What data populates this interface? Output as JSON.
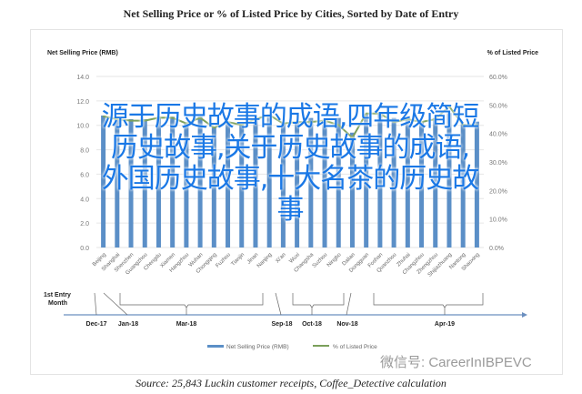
{
  "chart_data": {
    "type": "bar",
    "title": "Net Selling Price or % of Listed Price by Cities, Sorted by Date of Entry",
    "ylabel": "Net Selling Price (RMB)",
    "y2label": "% of Listed Price",
    "ylim": [
      0,
      14
    ],
    "y2lim": [
      0,
      60
    ],
    "yticks": [
      "0.0",
      "2.0",
      "4.0",
      "6.0",
      "8.0",
      "10.0",
      "12.0",
      "14.0"
    ],
    "y2ticks": [
      "0.0%",
      "10.0%",
      "20.0%",
      "30.0%",
      "40.0%",
      "50.0%",
      "60.0%"
    ],
    "grid": true,
    "legend_position": "bottom",
    "categories": [
      "Beijing",
      "Shanghai",
      "Shenzhen",
      "Guangzhou",
      "Chengdu",
      "Xiamen",
      "Hangzhou",
      "Wuhan",
      "Chongqing",
      "Fuzhou",
      "Tianjin",
      "Jinan",
      "Nanjing",
      "Xi'an",
      "Wuxi",
      "Changsha",
      "Suzhou",
      "Ningbo",
      "Dalian",
      "Dongguan",
      "Foshan",
      "Quanzhou",
      "Zhuhai",
      "Changzhou",
      "Zhengzhou",
      "Shijiazhuang",
      "Nantong",
      "Shaoxing"
    ],
    "series": [
      {
        "name": "Net Selling Price (RMB)",
        "type": "bar",
        "color": "#5b8fc7",
        "values": [
          10.8,
          10.6,
          10.5,
          10.5,
          10.7,
          10.7,
          10.2,
          10.7,
          9.9,
          10.3,
          10.1,
          10.6,
          10.9,
          10.2,
          10.3,
          10.6,
          10.3,
          10.6,
          9.4,
          10.9,
          11.0,
          10.6,
          10.6,
          10.3,
          10.6,
          11.0,
          10.1,
          10.3
        ]
      },
      {
        "name": "% of Listed Price",
        "type": "line",
        "color": "#7ba05b",
        "values": [
          46,
          45,
          44.5,
          44.5,
          45.5,
          45.5,
          43.5,
          45.5,
          42,
          44,
          43,
          45,
          46.5,
          43.5,
          44,
          44,
          44.5,
          43,
          38.5,
          47,
          47,
          44,
          45,
          44,
          45,
          49.5,
          43,
          43
        ]
      }
    ],
    "timeline": {
      "label": "1st Entry Month",
      "entries": [
        "Dec-17",
        "Jan-18",
        "Mar-18",
        "Sep-18",
        "Oct-18",
        "Nov-18",
        "Apr-19"
      ]
    }
  },
  "source": "Source: 25,843 Luckin customer receipts, Coffee_Detective calculation",
  "watermark": "微信号: CareerInIBPEVC",
  "overlay_text": "源于历史故事的成语,四年级简短历史故事,关于历史故事的成语,外国历史故事,十大名茶的历史故事"
}
